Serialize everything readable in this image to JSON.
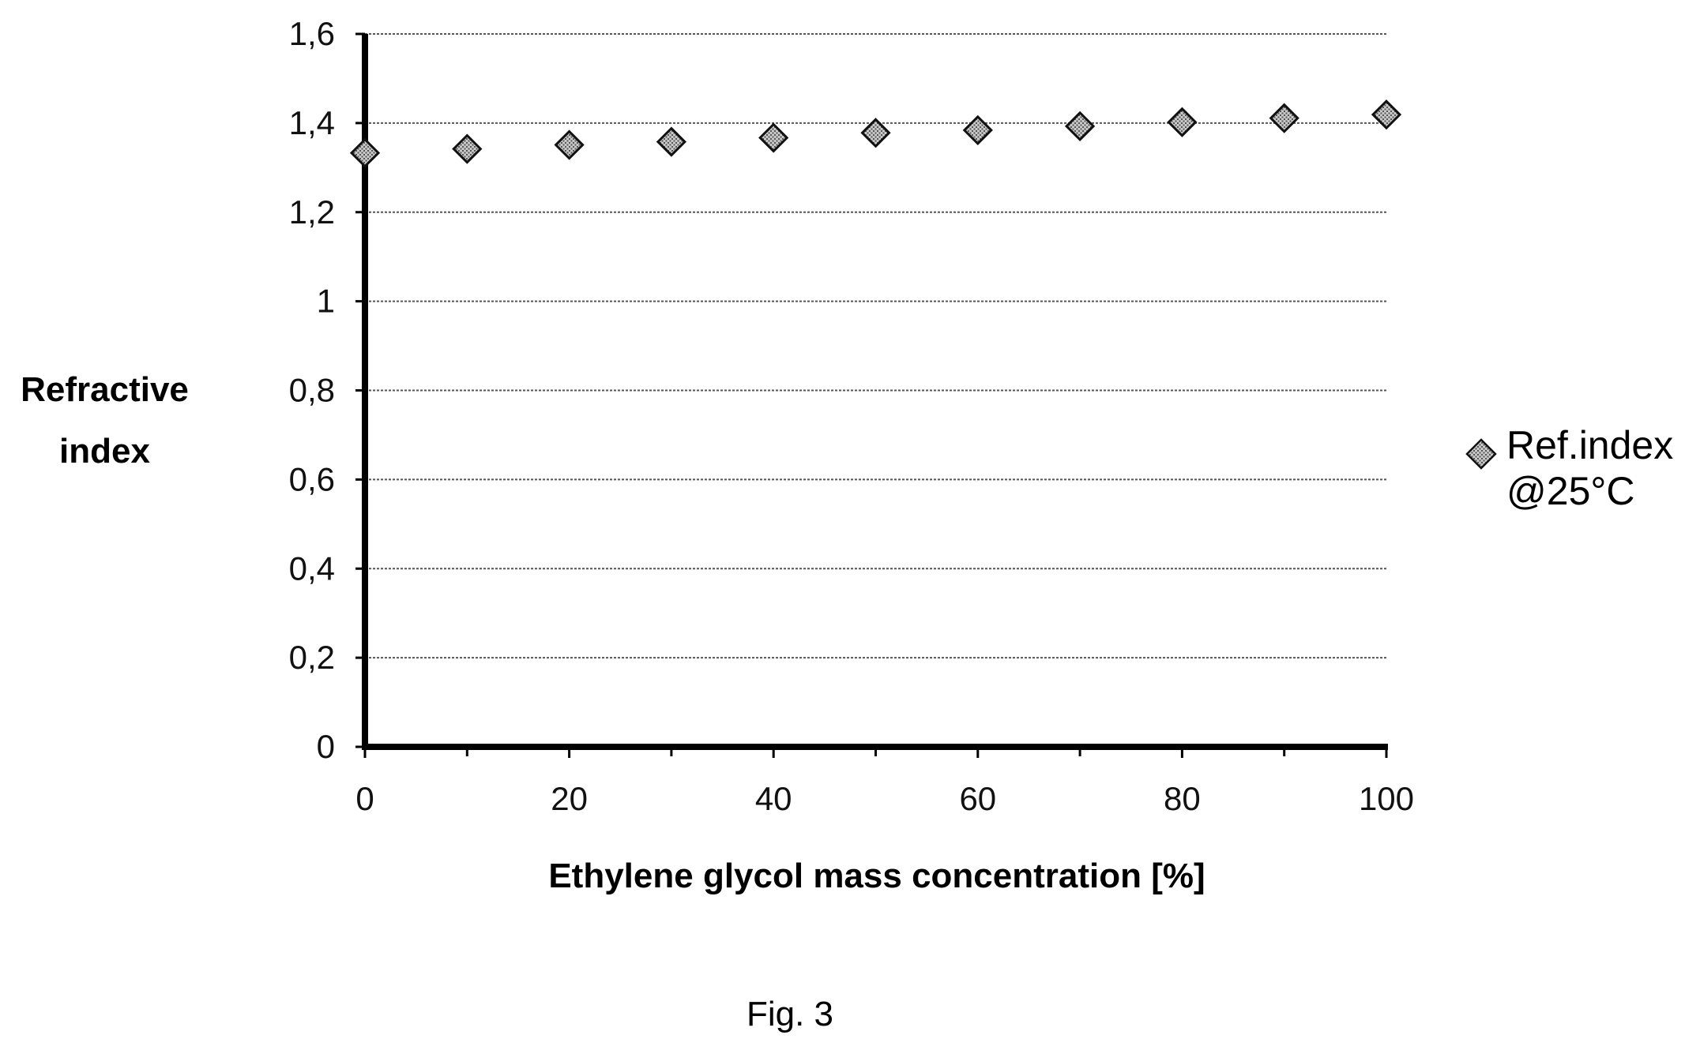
{
  "chart_data": {
    "type": "scatter",
    "title": "",
    "xlabel": "Ethylene glycol mass concentration [%]",
    "ylabel": "Refractive index",
    "xlim": [
      0,
      100
    ],
    "ylim": [
      0,
      1.6
    ],
    "x_ticks": [
      "0",
      "20",
      "40",
      "60",
      "80",
      "100"
    ],
    "y_ticks": [
      "0",
      "0,2",
      "0,4",
      "0,6",
      "0,8",
      "1",
      "1,2",
      "1,4",
      "1,6"
    ],
    "grid": true,
    "legend_position": "right",
    "series": [
      {
        "name": "Ref.index @25°C",
        "marker": "diamond",
        "color": "#9a9a9a",
        "x": [
          0,
          10,
          20,
          30,
          40,
          50,
          60,
          70,
          80,
          90,
          100
        ],
        "y": [
          1.333,
          1.342,
          1.351,
          1.358,
          1.367,
          1.378,
          1.384,
          1.393,
          1.402,
          1.411,
          1.419
        ]
      }
    ]
  },
  "legend": {
    "label": "Ref.index @25°C"
  },
  "figure_caption": "Fig. 3"
}
